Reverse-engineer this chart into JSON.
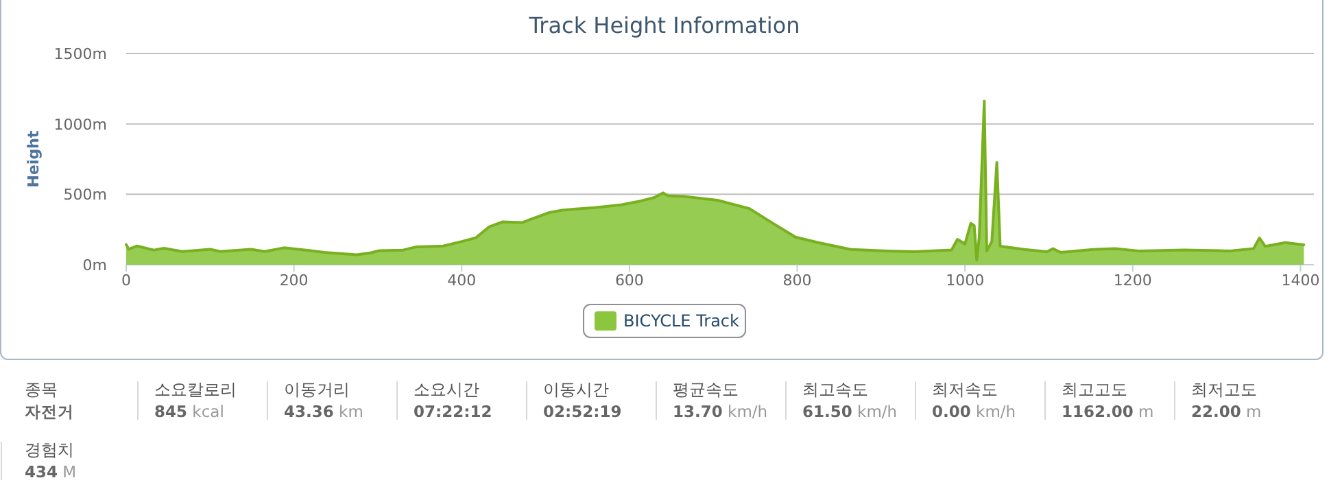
{
  "chart_data": [
    {
      "type": "area",
      "title": "Track Height Information",
      "ylabel": "Height",
      "x": [
        0,
        3,
        13,
        33,
        45,
        67,
        100,
        112,
        149,
        165,
        188,
        220,
        236,
        275,
        291,
        302,
        330,
        346,
        378,
        401,
        417,
        433,
        449,
        472,
        482,
        504,
        520,
        536,
        559,
        591,
        613,
        630,
        640,
        646,
        667,
        705,
        743,
        771,
        798,
        825,
        864,
        908,
        940,
        984,
        991,
        1000,
        1007,
        1011,
        1014,
        1017,
        1023,
        1026,
        1032,
        1038,
        1042,
        1071,
        1098,
        1105,
        1114,
        1153,
        1179,
        1207,
        1261,
        1316,
        1344,
        1351,
        1358,
        1382,
        1404
      ],
      "series": [
        {
          "name": "BICYCLE Track",
          "color": "#8cc63f",
          "values": [
            143,
            110,
            133,
            104,
            117,
            94,
            110,
            94,
            110,
            94,
            120,
            100,
            88,
            71,
            84,
            100,
            104,
            127,
            133,
            166,
            192,
            270,
            305,
            299,
            322,
            370,
            387,
            396,
            406,
            426,
            452,
            478,
            510,
            490,
            484,
            458,
            399,
            294,
            196,
            157,
            108,
            98,
            92,
            105,
            180,
            147,
            294,
            278,
            33,
            196,
            1161,
            98,
            164,
            726,
            131,
            108,
            92,
            114,
            88,
            108,
            114,
            98,
            105,
            98,
            114,
            190,
            131,
            157,
            141
          ]
        }
      ],
      "xlim": [
        0,
        1416
      ],
      "ylim": [
        0,
        1500
      ],
      "xticks": [
        0,
        200,
        400,
        600,
        800,
        1000,
        1200,
        1400
      ],
      "yticks": [
        {
          "value": 0,
          "label": "0m"
        },
        {
          "value": 500,
          "label": "500m"
        },
        {
          "value": 1000,
          "label": "1000m"
        },
        {
          "value": 1500,
          "label": "1500m"
        }
      ],
      "grid": "y",
      "legend": "bottom",
      "marker": "none",
      "line_style": "solid"
    },
    {
      "type": "other",
      "annotations": [
        "종목",
        "자전거",
        "소요칼로리",
        "845 kcal",
        "이동거리",
        "43.36 km",
        "소요시간",
        "07:22:12",
        "이동시간",
        "02:52:19",
        "평균속도",
        "13.70 km/h",
        "최고속도",
        "61.50 km/h",
        "최저속도",
        "0.00 km/h",
        "최고고도",
        "1162.00 m",
        "최저고도",
        "22.00 m",
        "경험치",
        "434 M"
      ]
    }
  ]
}
